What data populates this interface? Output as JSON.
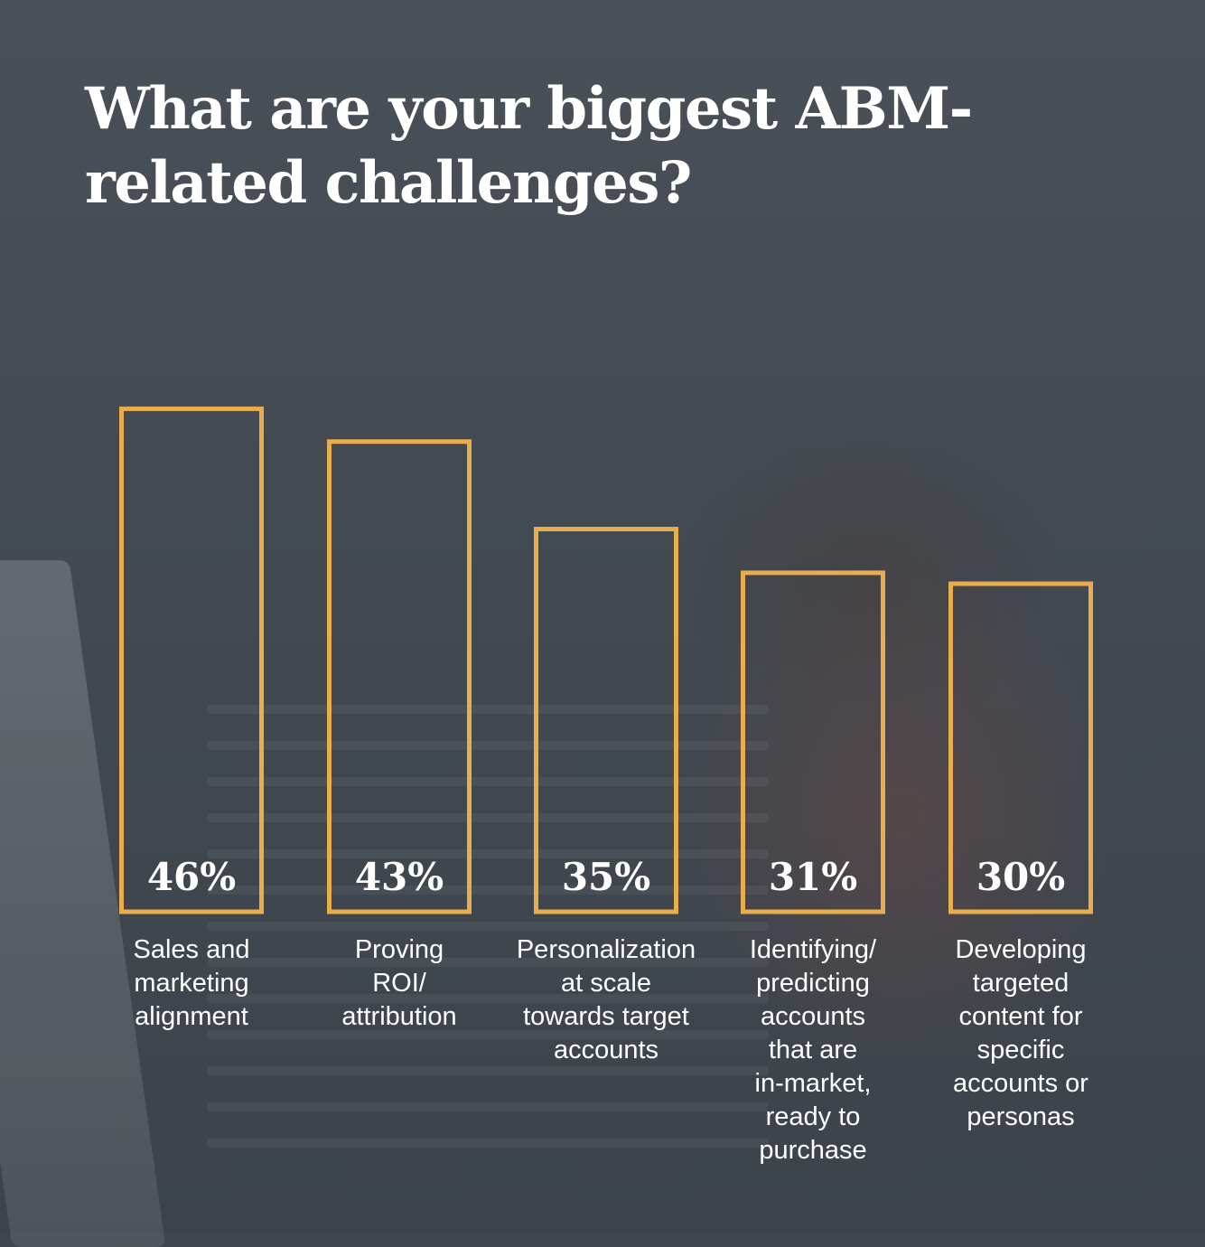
{
  "title": "What are your biggest ABM-related challenges?",
  "colors": {
    "bar_outline": "#e8ad4f",
    "text": "#ffffff"
  },
  "chart_data": {
    "type": "bar",
    "title": "What are your biggest ABM-related challenges?",
    "categories": [
      "Sales and marketing alignment",
      "Proving ROI/ attribution",
      "Personalization at scale towards target accounts",
      "Identifying/ predicting accounts that are in-market, ready to purchase",
      "Developing targeted content for specific accounts or personas"
    ],
    "values": [
      46,
      43,
      35,
      31,
      30
    ],
    "value_labels": [
      "46%",
      "43%",
      "35%",
      "31%",
      "30%"
    ],
    "unit": "%",
    "grid": false,
    "legend": "none"
  }
}
